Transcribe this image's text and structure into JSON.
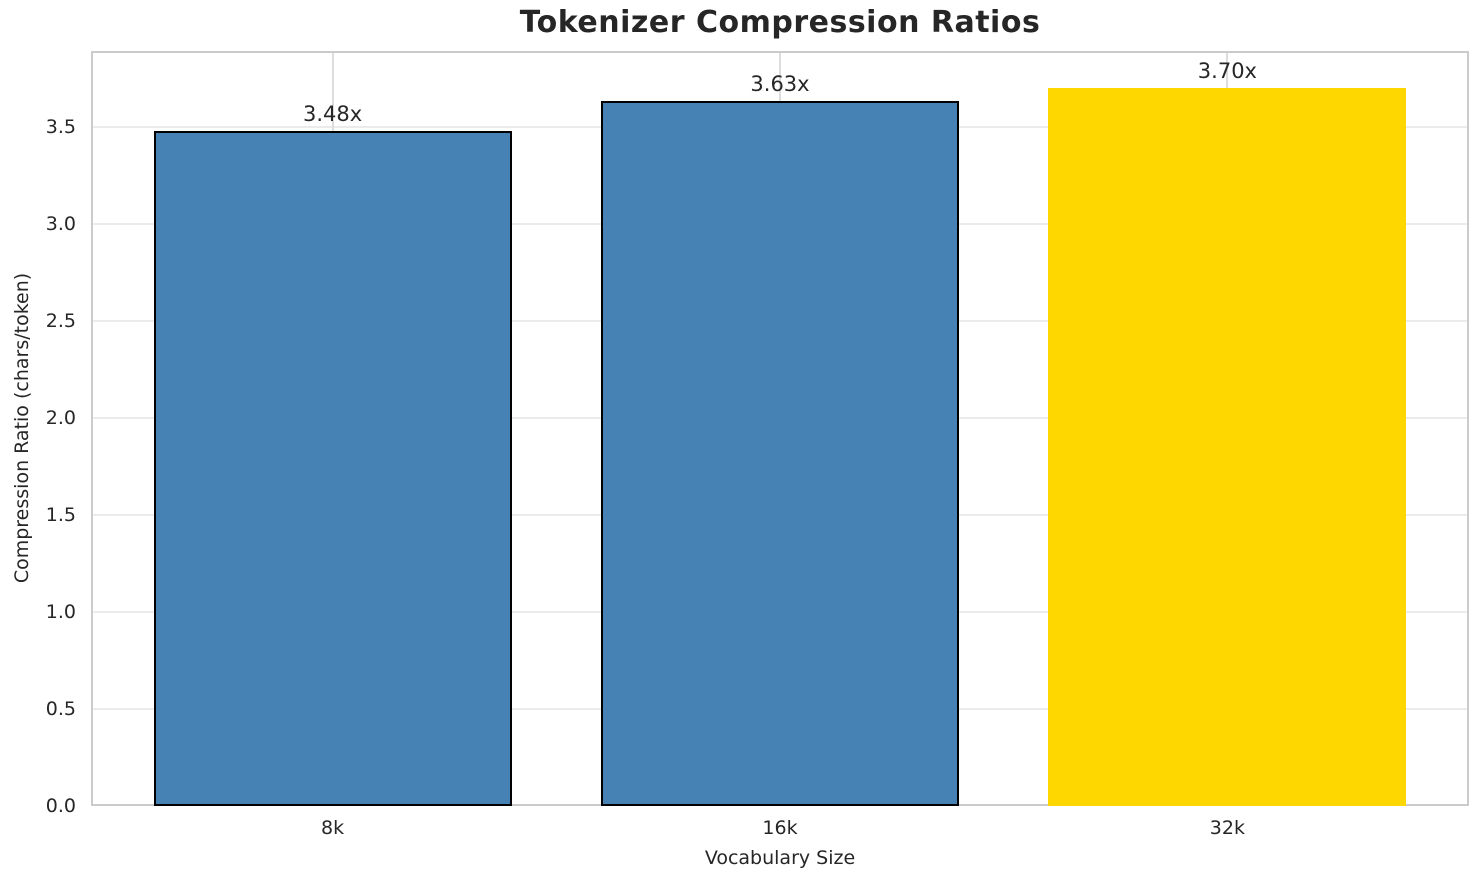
{
  "chart_data": {
    "type": "bar",
    "title": "Tokenizer Compression Ratios",
    "xlabel": "Vocabulary Size",
    "ylabel": "Compression Ratio (chars/token)",
    "categories": [
      "8k",
      "16k",
      "32k"
    ],
    "values": [
      3.48,
      3.63,
      3.7
    ],
    "bar_labels": [
      "3.48x",
      "3.63x",
      "3.70x"
    ],
    "bar_colors": [
      "#4682B4",
      "#4682B4",
      "#FFD700"
    ],
    "bar_edge_colors": [
      "#000000",
      "#000000",
      null
    ],
    "ylim": [
      0,
      3.89
    ],
    "ytick_labels": [
      "0.0",
      "0.5",
      "1.0",
      "1.5",
      "2.0",
      "2.5",
      "3.0",
      "3.5"
    ],
    "grid": true,
    "legend_position": "none"
  },
  "style": {
    "background": "#ffffff",
    "blue_bar_color": "#4682B4",
    "gold_bar_color": "#FFD700",
    "grid_color": "#ebebeb",
    "spine_color": "#cbcbcb",
    "text_color": "#262626"
  }
}
